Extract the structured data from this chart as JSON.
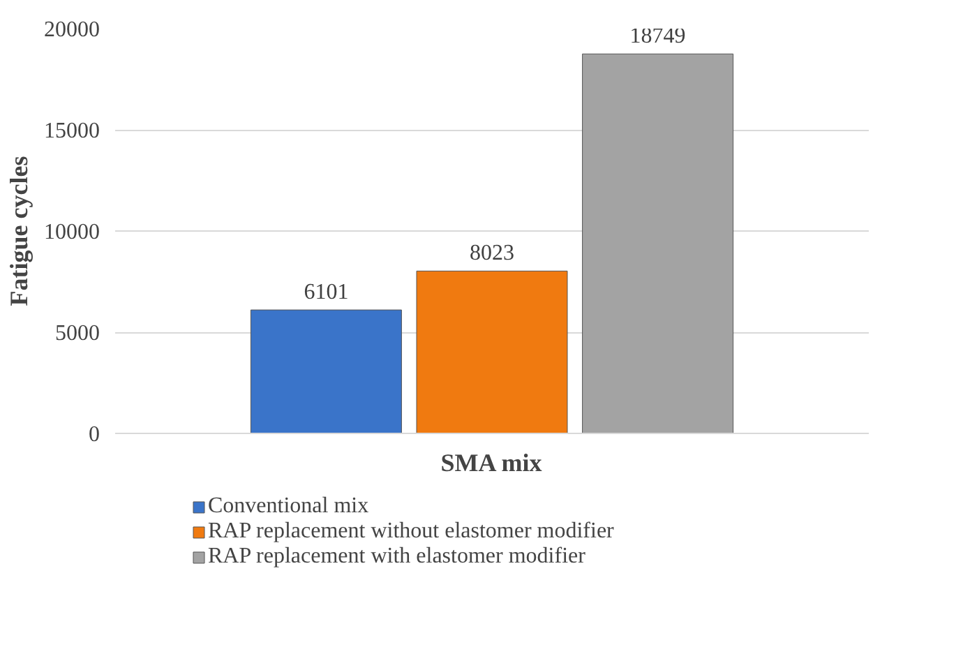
{
  "chart_data": {
    "type": "bar",
    "categories": [
      null
    ],
    "xlabel": "SMA mix",
    "ylabel": "Fatigue cycles",
    "series": [
      {
        "name": "Conventional mix",
        "color": "#3a74c9",
        "values": [
          6101
        ]
      },
      {
        "name": "RAP replacement without elastomer modifier",
        "color": "#f07a10",
        "values": [
          8023
        ]
      },
      {
        "name": "RAP replacement with elastomer modifier",
        "color": "#a3a3a3",
        "values": [
          18749
        ]
      }
    ],
    "ylim": [
      0,
      20000
    ],
    "yticks": [
      0,
      5000,
      10000,
      15000,
      20000
    ],
    "grid": "y",
    "legend": "bottom",
    "data_labels": true
  }
}
